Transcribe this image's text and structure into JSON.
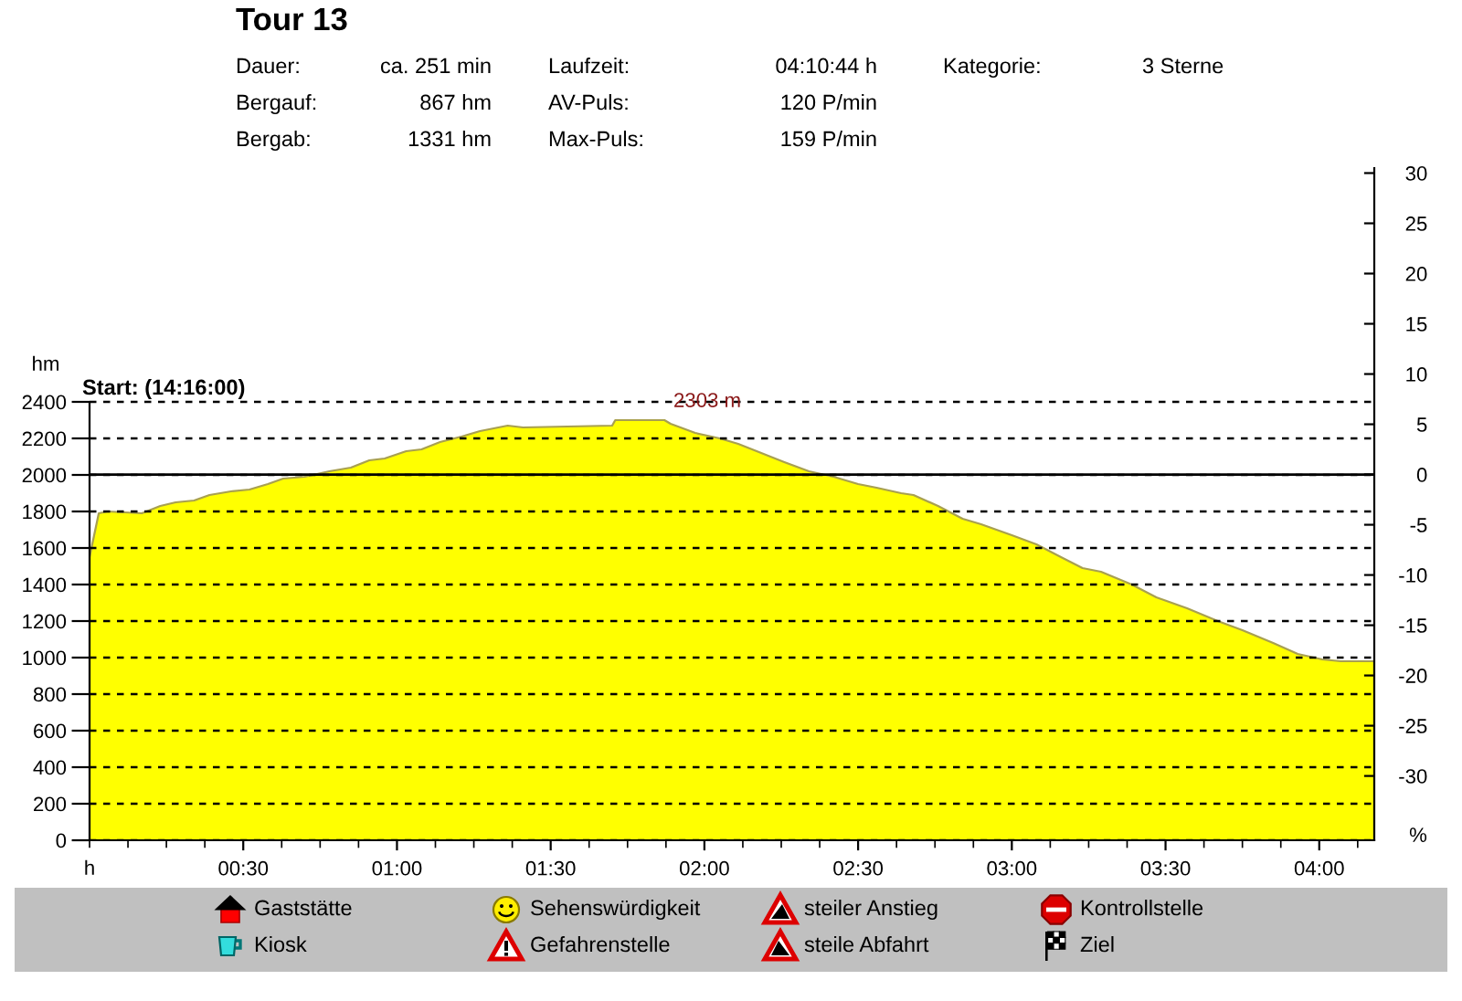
{
  "chart_data": {
    "type": "area",
    "title": "Tour 13",
    "xlabel": "h",
    "ylabel": "hm",
    "y2label": "%",
    "x": [
      0,
      0.03,
      0.06,
      0.17,
      0.23,
      0.28,
      0.34,
      0.39,
      0.46,
      0.52,
      0.58,
      0.63,
      0.7,
      0.78,
      0.85,
      0.91,
      0.96,
      1.03,
      1.08,
      1.14,
      1.21,
      1.27,
      1.36,
      1.41,
      1.7,
      1.71,
      1.87,
      1.89,
      1.97,
      2.05,
      2.11,
      2.17,
      2.26,
      2.34,
      2.42,
      2.5,
      2.56,
      2.64,
      2.68,
      2.76,
      2.84,
      2.9,
      3.0,
      3.08,
      3.16,
      3.23,
      3.29,
      3.39,
      3.47,
      3.57,
      3.67,
      3.75,
      3.85,
      3.93,
      4.01,
      4.07,
      4.179
    ],
    "values": [
      1550,
      1790,
      1800,
      1790,
      1830,
      1850,
      1860,
      1890,
      1910,
      1920,
      1950,
      1980,
      1990,
      2020,
      2040,
      2080,
      2090,
      2130,
      2140,
      2180,
      2210,
      2240,
      2270,
      2260,
      2270,
      2300,
      2300,
      2280,
      2230,
      2200,
      2170,
      2130,
      2070,
      2020,
      1990,
      1950,
      1930,
      1900,
      1890,
      1830,
      1760,
      1730,
      1670,
      1620,
      1550,
      1490,
      1470,
      1400,
      1330,
      1270,
      1200,
      1150,
      1080,
      1020,
      990,
      980,
      980
    ],
    "color": "#ffff00",
    "xlim": [
      0,
      4.179
    ],
    "xticks": [
      {
        "value": 0,
        "label": null
      },
      {
        "value": 0.125,
        "label": null
      },
      {
        "value": 0.25,
        "label": null
      },
      {
        "value": 0.375,
        "label": null
      },
      {
        "value": 0.5,
        "label": "00:30"
      },
      {
        "value": 0.625,
        "label": null
      },
      {
        "value": 0.75,
        "label": null
      },
      {
        "value": 0.875,
        "label": null
      },
      {
        "value": 1,
        "label": "01:00"
      },
      {
        "value": 1.125,
        "label": null
      },
      {
        "value": 1.25,
        "label": null
      },
      {
        "value": 1.375,
        "label": null
      },
      {
        "value": 1.5,
        "label": "01:30"
      },
      {
        "value": 1.625,
        "label": null
      },
      {
        "value": 1.75,
        "label": null
      },
      {
        "value": 1.875,
        "label": null
      },
      {
        "value": 2,
        "label": "02:00"
      },
      {
        "value": 2.125,
        "label": null
      },
      {
        "value": 2.25,
        "label": null
      },
      {
        "value": 2.375,
        "label": null
      },
      {
        "value": 2.5,
        "label": "02:30"
      },
      {
        "value": 2.625,
        "label": null
      },
      {
        "value": 2.75,
        "label": null
      },
      {
        "value": 2.875,
        "label": null
      },
      {
        "value": 3,
        "label": "03:00"
      },
      {
        "value": 3.125,
        "label": null
      },
      {
        "value": 3.25,
        "label": null
      },
      {
        "value": 3.375,
        "label": null
      },
      {
        "value": 3.5,
        "label": "03:30"
      },
      {
        "value": 3.625,
        "label": null
      },
      {
        "value": 3.75,
        "label": null
      },
      {
        "value": 3.875,
        "label": null
      },
      {
        "value": 4,
        "label": "04:00"
      },
      {
        "value": 4.125,
        "label": null
      }
    ],
    "ylim": [
      0,
      3680
    ],
    "yticks": [
      0,
      200,
      400,
      600,
      800,
      1000,
      1200,
      1400,
      1600,
      1800,
      2000,
      2200,
      2400
    ],
    "y2lim": [
      -36.4,
      30.5
    ],
    "y2ticks": [
      30,
      25,
      20,
      15,
      10,
      5,
      0,
      -5,
      -10,
      -15,
      -20,
      -25,
      -30
    ],
    "grid": "y",
    "ref_lines": [
      {
        "axis": "y2",
        "value": 0,
        "color": "#000000",
        "line_style": "solid"
      }
    ],
    "annotations": [
      "Dauer:",
      "ca. 251 min",
      "Bergauf:",
      "867 hm",
      "Bergab:",
      "1331 hm",
      "Laufzeit:",
      "04:10:44 h",
      "AV-Puls:",
      "120 P/min",
      "Max-Puls:",
      "159 P/min",
      "Kategorie:",
      "3 Sterne",
      "Start: (14:16:00)",
      "2303 m",
      "Gaststätte",
      "Sehenswürdigkeit",
      "steiler Anstieg",
      "Kontrollstelle",
      "Kiosk",
      "Gefahrenstelle",
      "steile Abfahrt",
      "Ziel"
    ]
  }
}
